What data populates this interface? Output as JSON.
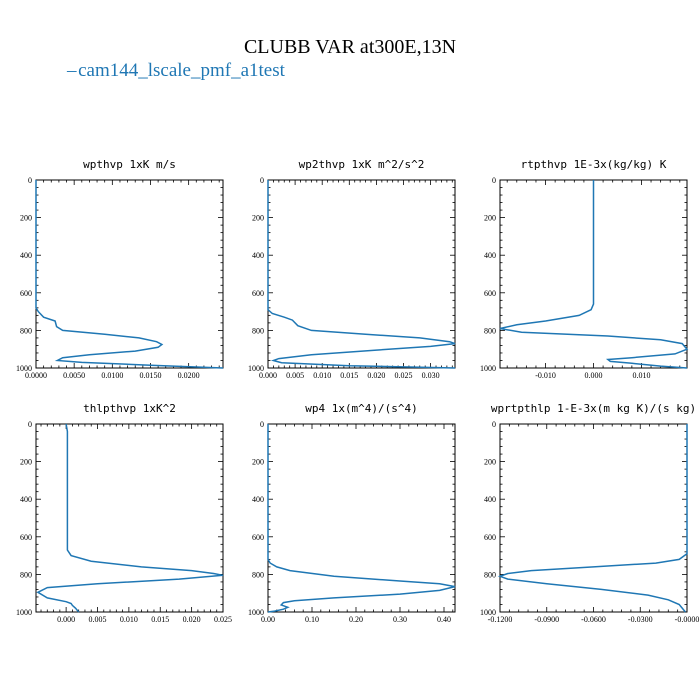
{
  "title": "CLUBB VAR at300E,13N",
  "legend": {
    "label": "cam144_lscale_pmf_a1test",
    "color": "#1f77b4"
  },
  "chart_data": [
    {
      "type": "line",
      "title": "wpthvp   1xK m/s",
      "xlim": [
        0.0,
        0.0245
      ],
      "ylim": [
        1000,
        0
      ],
      "xticks": [
        0.0,
        0.005,
        0.01,
        0.015,
        0.02
      ],
      "xtick_labels": [
        "0.0000",
        "0.0050",
        "0.0100",
        "0.0150",
        "0.0200"
      ],
      "yticks": [
        0,
        200,
        400,
        600,
        800,
        1000
      ],
      "ytick_labels": [
        "0",
        "200",
        "400",
        "600",
        "800",
        "1000"
      ],
      "series": [
        {
          "name": "cam144_lscale_pmf_a1test",
          "x": [
            0.0,
            0.0,
            0.0,
            0.0003,
            0.001,
            0.0025,
            0.0027,
            0.0035,
            0.009,
            0.0135,
            0.0158,
            0.0165,
            0.016,
            0.013,
            0.007,
            0.0035,
            0.0028,
            0.006,
            0.015,
            0.0245
          ],
          "y": [
            0,
            400,
            680,
            700,
            730,
            750,
            780,
            800,
            820,
            840,
            860,
            875,
            890,
            910,
            930,
            945,
            960,
            970,
            985,
            1000
          ]
        }
      ]
    },
    {
      "type": "line",
      "title": "wp2thvp   1xK m^2/s^2",
      "xlim": [
        0.0,
        0.0345
      ],
      "ylim": [
        1000,
        0
      ],
      "xticks": [
        0.0,
        0.005,
        0.01,
        0.015,
        0.02,
        0.025,
        0.03
      ],
      "xtick_labels": [
        "0.000",
        "0.005",
        "0.010",
        "0.015",
        "0.020",
        "0.025",
        "0.030"
      ],
      "yticks": [
        0,
        200,
        400,
        600,
        800,
        1000
      ],
      "ytick_labels": [
        "0",
        "200",
        "400",
        "600",
        "800",
        "1000"
      ],
      "series": [
        {
          "name": "cam144_lscale_pmf_a1test",
          "x": [
            0.0,
            0.0,
            0.0,
            0.0008,
            0.003,
            0.0045,
            0.0055,
            0.008,
            0.018,
            0.028,
            0.0335,
            0.0345,
            0.03,
            0.02,
            0.008,
            0.002,
            0.001,
            0.0025,
            0.015,
            0.0345
          ],
          "y": [
            0,
            400,
            690,
            710,
            730,
            745,
            775,
            800,
            820,
            840,
            860,
            870,
            885,
            905,
            930,
            950,
            960,
            972,
            988,
            1000
          ]
        }
      ]
    },
    {
      "type": "line",
      "title": "rtpthvp   1E-3x(kg/kg) K",
      "xlim": [
        -0.0195,
        0.0195
      ],
      "ylim": [
        1000,
        0
      ],
      "xticks": [
        -0.01,
        0.0,
        0.01
      ],
      "xtick_labels": [
        "-0.010",
        "0.000",
        "0.010"
      ],
      "yticks": [
        0,
        200,
        400,
        600,
        800,
        1000
      ],
      "ytick_labels": [
        "0",
        "200",
        "400",
        "600",
        "800",
        "1000"
      ],
      "series": [
        {
          "name": "cam144_lscale_pmf_a1test",
          "x": [
            0.0,
            0.0,
            0.0,
            -0.0005,
            -0.003,
            -0.01,
            -0.016,
            -0.0195,
            -0.015,
            0.003,
            0.014,
            0.0185,
            0.0195,
            0.017,
            0.008,
            0.003,
            0.0035,
            0.008,
            0.014,
            0.0195
          ],
          "y": [
            0,
            400,
            660,
            690,
            720,
            750,
            770,
            790,
            810,
            830,
            850,
            870,
            900,
            925,
            945,
            955,
            965,
            975,
            990,
            1000
          ]
        }
      ]
    },
    {
      "type": "line",
      "title": "thlpthvp   1xK^2",
      "xlim": [
        -0.0048,
        0.025
      ],
      "ylim": [
        1000,
        0
      ],
      "xticks": [
        0.0,
        0.005,
        0.01,
        0.015,
        0.02,
        0.025
      ],
      "xtick_labels": [
        "0.000",
        "0.005",
        "0.010",
        "0.015",
        "0.020",
        "0.025"
      ],
      "yticks": [
        0,
        200,
        400,
        600,
        800,
        1000
      ],
      "ytick_labels": [
        "0",
        "200",
        "400",
        "600",
        "800",
        "1000"
      ],
      "series": [
        {
          "name": "cam144_lscale_pmf_a1test",
          "x": [
            0.0,
            0.0002,
            0.0002,
            0.0002,
            0.0008,
            0.004,
            0.012,
            0.02,
            0.0235,
            0.025,
            0.018,
            0.005,
            -0.003,
            -0.0045,
            -0.003,
            0.0,
            0.0008,
            0.001,
            0.0015,
            0.002
          ],
          "y": [
            0,
            40,
            300,
            670,
            700,
            730,
            760,
            780,
            795,
            805,
            825,
            850,
            870,
            895,
            925,
            945,
            955,
            965,
            980,
            1000
          ]
        }
      ]
    },
    {
      "type": "line",
      "title": "wp4   1x(m^4)/(s^4)",
      "xlim": [
        0.0,
        0.425
      ],
      "ylim": [
        1000,
        0
      ],
      "xticks": [
        0.0,
        0.1,
        0.2,
        0.3,
        0.4
      ],
      "xtick_labels": [
        "0.00",
        "0.10",
        "0.20",
        "0.30",
        "0.40"
      ],
      "yticks": [
        0,
        200,
        400,
        600,
        800,
        1000
      ],
      "ytick_labels": [
        "0",
        "200",
        "400",
        "600",
        "800",
        "1000"
      ],
      "series": [
        {
          "name": "cam144_lscale_pmf_a1test",
          "x": [
            0.0,
            0.0,
            0.0,
            0.005,
            0.02,
            0.05,
            0.15,
            0.3,
            0.39,
            0.425,
            0.39,
            0.3,
            0.15,
            0.06,
            0.035,
            0.03,
            0.045,
            0.035,
            0.015,
            0.0
          ],
          "y": [
            0,
            400,
            720,
            740,
            760,
            780,
            810,
            835,
            850,
            865,
            885,
            905,
            925,
            940,
            950,
            962,
            975,
            985,
            995,
            1000
          ]
        }
      ]
    },
    {
      "type": "line",
      "title": "wprtpthlp   1-E-3x(m kg K)/(s kg)",
      "xlim": [
        -0.12,
        0.0
      ],
      "ylim": [
        1000,
        0
      ],
      "xticks": [
        -0.12,
        -0.09,
        -0.06,
        -0.03,
        0.0
      ],
      "xtick_labels": [
        "-0.1200",
        "-0.0900",
        "-0.0600",
        "-0.0300",
        "-0.0000"
      ],
      "yticks": [
        0,
        200,
        400,
        600,
        800,
        1000
      ],
      "ytick_labels": [
        "0",
        "200",
        "400",
        "600",
        "800",
        "1000"
      ],
      "series": [
        {
          "name": "cam144_lscale_pmf_a1test",
          "x": [
            0.0,
            0.0,
            0.0,
            -0.005,
            -0.02,
            -0.06,
            -0.1,
            -0.115,
            -0.12,
            -0.115,
            -0.09,
            -0.055,
            -0.025,
            -0.012,
            -0.005,
            -0.001
          ],
          "y": [
            0,
            400,
            690,
            720,
            740,
            760,
            780,
            795,
            810,
            825,
            850,
            880,
            910,
            935,
            960,
            1000
          ]
        }
      ]
    }
  ]
}
